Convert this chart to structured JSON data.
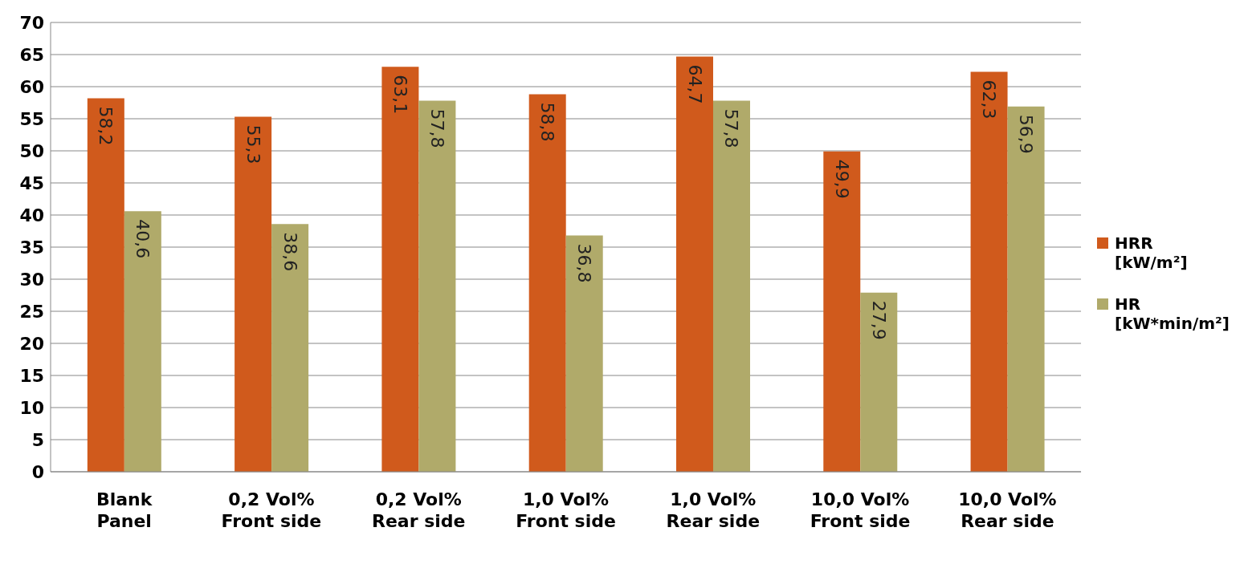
{
  "chart_data": {
    "type": "bar",
    "categories": [
      "Blank\nPanel",
      "0,2 Vol%\nFront side",
      "0,2 Vol%\nRear side",
      "1,0 Vol%\nFront side",
      "1,0 Vol%\nRear side",
      "10,0 Vol%\nFront side",
      "10,0 Vol%\nRear side"
    ],
    "series": [
      {
        "name": "HRR\n[kW/m²]",
        "color": "#d05a1c",
        "values": [
          58.2,
          55.3,
          63.1,
          58.8,
          64.7,
          49.9,
          62.3
        ],
        "value_labels": [
          "58,2",
          "55,3",
          "63,1",
          "58,8",
          "64,7",
          "49,9",
          "62,3"
        ]
      },
      {
        "name": "HR\n[kW*min/m²]",
        "color": "#b0aa6a",
        "values": [
          40.6,
          38.6,
          57.8,
          36.8,
          57.8,
          27.9,
          56.9
        ],
        "value_labels": [
          "40,6",
          "38,6",
          "57,8",
          "36,8",
          "57,8",
          "27,9",
          "56,9"
        ]
      }
    ],
    "ylim": [
      0,
      70
    ],
    "yticks": [
      0,
      5,
      10,
      15,
      20,
      25,
      30,
      35,
      40,
      45,
      50,
      55,
      60,
      65,
      70
    ],
    "grid": "y",
    "legend": "right"
  }
}
